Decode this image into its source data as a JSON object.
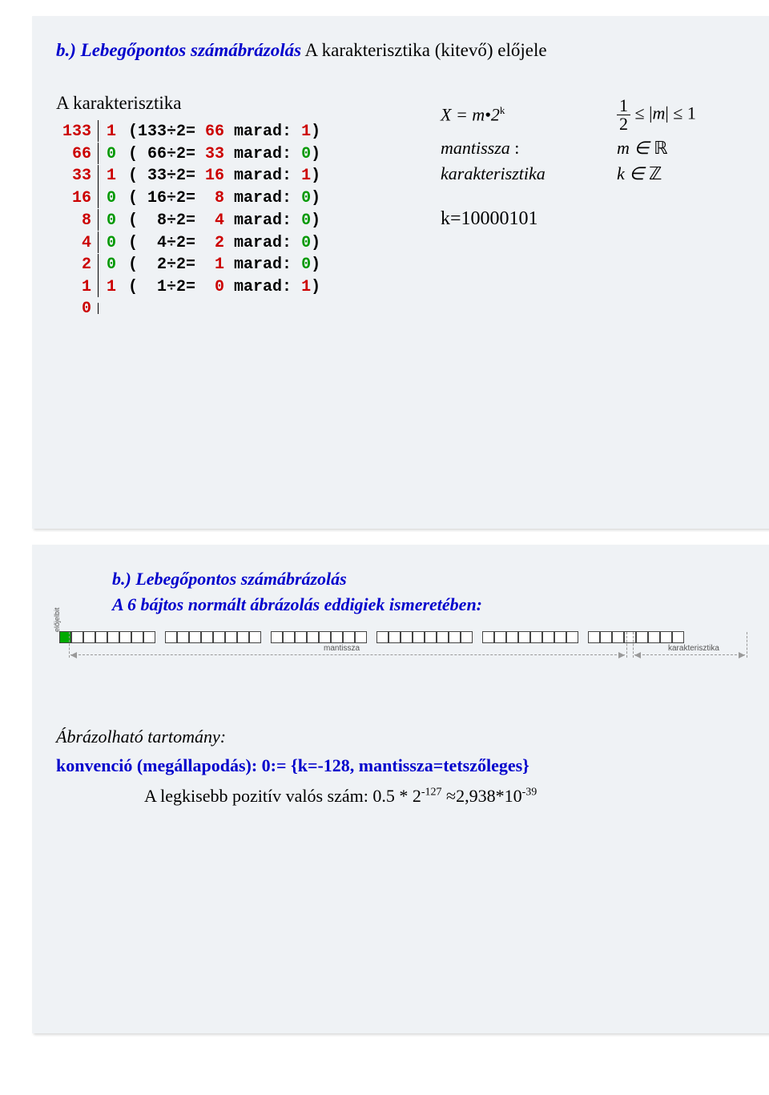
{
  "slide1": {
    "title_blue": "b.) Lebegőpontos számábrázolás",
    "title_black": "  A karakterisztika (kitevő) előjele",
    "subtitle": "A karakterisztika",
    "rows": [
      {
        "n": "133",
        "bit": "1",
        "open": "(",
        "div": "133÷2=",
        "q": " 66",
        "mid": " marad: ",
        "r": "1",
        "close": ")",
        "bit_green": false
      },
      {
        "n": "66",
        "bit": "0",
        "open": "(",
        "div": " 66÷2=",
        "q": " 33",
        "mid": " marad: ",
        "r": "0",
        "close": ")",
        "bit_green": true
      },
      {
        "n": "33",
        "bit": "1",
        "open": "(",
        "div": " 33÷2=",
        "q": " 16",
        "mid": " marad: ",
        "r": "1",
        "close": ")",
        "bit_green": false
      },
      {
        "n": "16",
        "bit": "0",
        "open": "(",
        "div": " 16÷2=",
        "q": "  8",
        "mid": " marad: ",
        "r": "0",
        "close": ")",
        "bit_green": true
      },
      {
        "n": "8",
        "bit": "0",
        "open": "(",
        "div": "  8÷2=",
        "q": "  4",
        "mid": " marad: ",
        "r": "0",
        "close": ")",
        "bit_green": true
      },
      {
        "n": "4",
        "bit": "0",
        "open": "(",
        "div": "  4÷2=",
        "q": "  2",
        "mid": " marad: ",
        "r": "0",
        "close": ")",
        "bit_green": true
      },
      {
        "n": "2",
        "bit": "0",
        "open": "(",
        "div": "  2÷2=",
        "q": "  1",
        "mid": " marad: ",
        "r": "0",
        "close": ")",
        "bit_green": true
      },
      {
        "n": "1",
        "bit": "1",
        "open": "(",
        "div": "  1÷2=",
        "q": "  0",
        "mid": " marad: ",
        "r": "1",
        "close": ")",
        "bit_green": false
      },
      {
        "n": "0",
        "bit": "",
        "open": "",
        "div": "",
        "q": "",
        "mid": "",
        "r": "",
        "close": "",
        "bit_green": false
      }
    ],
    "formula_X": "X = m•2",
    "formula_X_sup": "k",
    "formula_half_num": "1",
    "formula_half_den": "2",
    "formula_m_ineq_l": " ≤ |",
    "formula_m_var": "m",
    "formula_m_ineq_r": "| ≤ 1",
    "mantissa_label": "mantissza",
    "mantissa_colon": " :",
    "m_in": "m ∈ ",
    "m_set": "ℝ",
    "kar_label": "karakterisztika",
    "k_in": "k ∈ ",
    "k_set": "ℤ",
    "k_result": "k=10000101"
  },
  "slide2": {
    "title": "b.) Lebegőpontos számábrázolás",
    "subtitle": "A 6 bájtos normált ábrázolás eddigiek ismeretében:",
    "label_elo": "előjelbit",
    "label_mant": "mantissza",
    "label_kar": "karakterisztika",
    "bytes": 6,
    "bits_per_byte": 8,
    "first_bit_green": true,
    "range_title": "Ábrázolható tartomány:",
    "convention": "konvenció (megállapodás): 0:= {k=-128, mantissza=tetszőleges}",
    "smallest_pre": "A legkisebb pozitív valós szám:  0.5 * 2",
    "smallest_exp": "-127",
    "smallest_mid": " ≈2,938*10",
    "smallest_exp2": "-39"
  },
  "colors": {
    "slide_bg": "#eff2f5",
    "red": "#cc0000",
    "green": "#009900",
    "blue": "#0000cc",
    "black": "#000000",
    "bit_green": "#00aa00",
    "bit_border": "#444444",
    "grey": "#999999"
  }
}
